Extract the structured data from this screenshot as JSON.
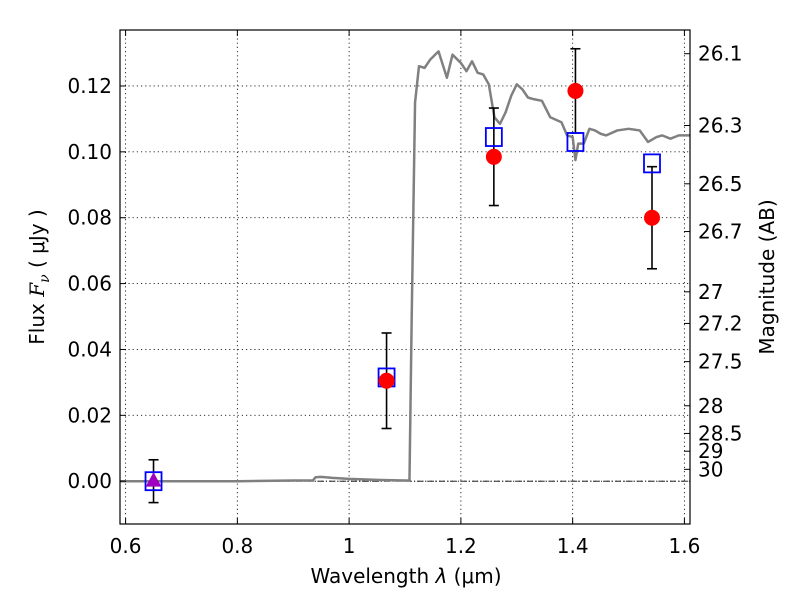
{
  "chart_data": {
    "type": "scatter",
    "xlabel_pre": "Wavelength  ",
    "xlabel_lambda": "λ",
    "xlabel_unit": " (μm)",
    "ylabel_pre": "Flux  ",
    "ylabel_F": "F",
    "ylabel_nu": "ν",
    "ylabel_unit": "  ( μJy )",
    "ylabel_right": "Magnitude (AB)",
    "xlim": [
      0.59,
      1.61
    ],
    "ylim": [
      -0.013,
      0.137
    ],
    "x_ticks": [
      0.6,
      0.8,
      1.0,
      1.2,
      1.4,
      1.6
    ],
    "x_tick_labels": [
      "0.6",
      "0.8",
      "1",
      "1.2",
      "1.4",
      "1.6"
    ],
    "y_ticks": [
      0.0,
      0.02,
      0.04,
      0.06,
      0.08,
      0.1,
      0.12
    ],
    "y_tick_labels": [
      "0.00",
      "0.02",
      "0.04",
      "0.06",
      "0.08",
      "0.10",
      "0.12"
    ],
    "right_ticks": [
      {
        "label": "26.1",
        "flux": 0.1298
      },
      {
        "label": "26.3",
        "flux": 0.108
      },
      {
        "label": "26.5",
        "flux": 0.0903
      },
      {
        "label": "26.7",
        "flux": 0.0758
      },
      {
        "label": "27",
        "flux": 0.0575
      },
      {
        "label": "27.2",
        "flux": 0.0479
      },
      {
        "label": "27.5",
        "flux": 0.0363
      },
      {
        "label": "28",
        "flux": 0.0229
      },
      {
        "label": "28.5",
        "flux": 0.0145
      },
      {
        "label": "29",
        "flux": 0.0091
      },
      {
        "label": "30",
        "flux": 0.0036
      }
    ],
    "grid": true,
    "model_sed": {
      "color": "#808080",
      "x": [
        0.59,
        0.7,
        0.8,
        0.9,
        0.935,
        0.94,
        0.95,
        0.97,
        1.0,
        1.05,
        1.1,
        1.108,
        1.112,
        1.118,
        1.125,
        1.135,
        1.145,
        1.16,
        1.175,
        1.185,
        1.2,
        1.21,
        1.22,
        1.23,
        1.24,
        1.25,
        1.26,
        1.27,
        1.28,
        1.29,
        1.3,
        1.31,
        1.32,
        1.33,
        1.345,
        1.36,
        1.38,
        1.39,
        1.4,
        1.405,
        1.41,
        1.42,
        1.43,
        1.44,
        1.45,
        1.46,
        1.48,
        1.5,
        1.52,
        1.535,
        1.55,
        1.56,
        1.575,
        1.59,
        1.61
      ],
      "y": [
        0.0,
        0.0,
        0.0,
        0.0002,
        0.0002,
        0.0012,
        0.0013,
        0.001,
        0.0007,
        0.0004,
        0.0002,
        0.0002,
        0.05,
        0.115,
        0.126,
        0.1255,
        0.128,
        0.1305,
        0.1225,
        0.1295,
        0.127,
        0.1245,
        0.1275,
        0.124,
        0.1235,
        0.1205,
        0.1105,
        0.1085,
        0.112,
        0.117,
        0.1205,
        0.119,
        0.1165,
        0.116,
        0.1155,
        0.1105,
        0.109,
        0.105,
        0.1045,
        0.0975,
        0.1025,
        0.1025,
        0.107,
        0.1065,
        0.1055,
        0.105,
        0.1065,
        0.107,
        0.1065,
        0.103,
        0.1045,
        0.105,
        0.104,
        0.105,
        0.105
      ]
    },
    "observed": {
      "color": "#ff0000",
      "points": [
        {
          "x": 1.067,
          "y": 0.0305,
          "err": 0.0145
        },
        {
          "x": 1.259,
          "y": 0.0985,
          "err": 0.0148
        },
        {
          "x": 1.405,
          "y": 0.1185,
          "err": 0.0128
        },
        {
          "x": 1.542,
          "y": 0.08,
          "err": 0.0155
        }
      ]
    },
    "upper_limit": {
      "color": "#a000c0",
      "x": 0.65,
      "y": 0.0,
      "err": 0.0065
    },
    "model_photometry": {
      "color": "#0000ff",
      "points": [
        {
          "x": 0.65,
          "y": 0.0
        },
        {
          "x": 1.067,
          "y": 0.0315
        },
        {
          "x": 1.259,
          "y": 0.1045
        },
        {
          "x": 1.405,
          "y": 0.103
        },
        {
          "x": 1.542,
          "y": 0.0965
        }
      ]
    },
    "zero_line": true
  }
}
